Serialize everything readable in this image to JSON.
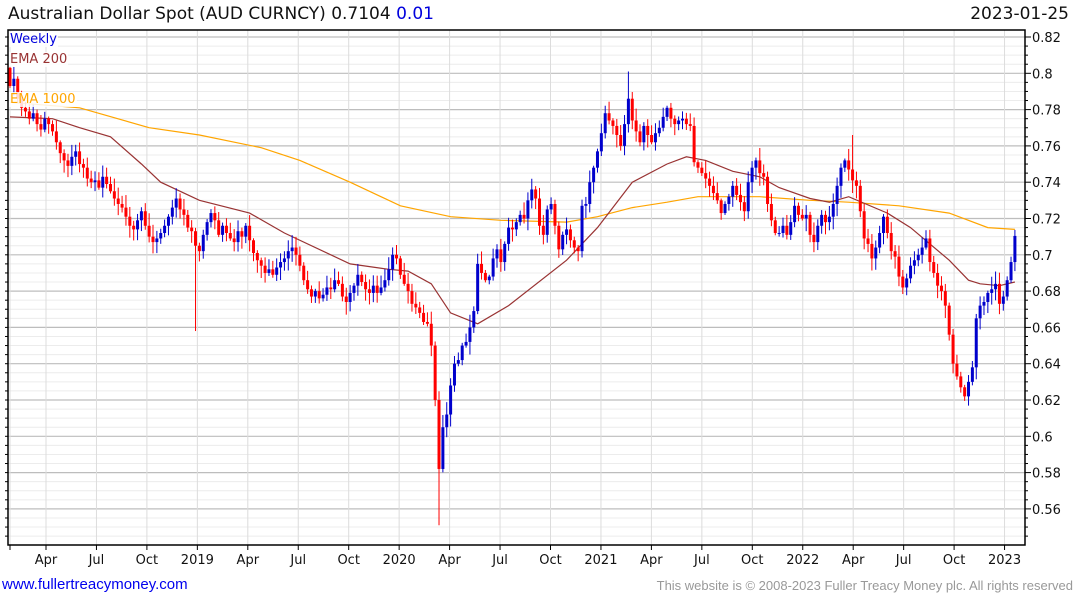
{
  "header": {
    "title": "Australian Dollar Spot (AUD CURNCY) 0.7104",
    "change": "0.01",
    "date": "2023-01-25"
  },
  "legend": {
    "weekly": "Weekly",
    "ema200": "EMA 200",
    "ema1000": "EMA 1000"
  },
  "footer": {
    "site": "www.fullertreacymoney.com",
    "copyright": "This website is © 2008-2023 Fuller Treacy Money plc. All rights reserved"
  },
  "colors": {
    "up": "#0000cc",
    "down": "#ff0000",
    "ema200": "#993333",
    "ema1000": "#ffa500"
  },
  "chart_data": {
    "type": "candlestick",
    "title": "Australian Dollar Spot (AUD CURNCY)",
    "period": "Weekly",
    "ylim": [
      0.545,
      0.825
    ],
    "y_ticks": [
      "0.82",
      "0.8",
      "0.78",
      "0.76",
      "0.74",
      "0.72",
      "0.7",
      "0.68",
      "0.66",
      "0.64",
      "0.62",
      "0.6",
      "0.58",
      "0.56"
    ],
    "x_ticks": [
      "Apr",
      "Jul",
      "Oct",
      "2019",
      "Apr",
      "Jul",
      "Oct",
      "2020",
      "Apr",
      "Jul",
      "Oct",
      "2021",
      "Apr",
      "Jul",
      "Oct",
      "2022",
      "Apr",
      "Jul",
      "Oct",
      "2023"
    ],
    "first_open": 0.803,
    "closes": [
      0.793,
      0.797,
      0.786,
      0.781,
      0.779,
      0.775,
      0.778,
      0.772,
      0.769,
      0.775,
      0.772,
      0.768,
      0.762,
      0.756,
      0.752,
      0.749,
      0.754,
      0.757,
      0.75,
      0.748,
      0.742,
      0.74,
      0.741,
      0.737,
      0.743,
      0.739,
      0.735,
      0.731,
      0.728,
      0.726,
      0.721,
      0.716,
      0.714,
      0.719,
      0.724,
      0.716,
      0.71,
      0.707,
      0.709,
      0.712,
      0.716,
      0.721,
      0.726,
      0.731,
      0.725,
      0.722,
      0.715,
      0.713,
      0.705,
      0.702,
      0.711,
      0.718,
      0.723,
      0.719,
      0.711,
      0.716,
      0.712,
      0.709,
      0.707,
      0.713,
      0.71,
      0.716,
      0.708,
      0.701,
      0.697,
      0.694,
      0.69,
      0.692,
      0.689,
      0.693,
      0.696,
      0.698,
      0.702,
      0.704,
      0.7,
      0.694,
      0.686,
      0.681,
      0.677,
      0.68,
      0.676,
      0.678,
      0.682,
      0.681,
      0.686,
      0.684,
      0.677,
      0.674,
      0.679,
      0.683,
      0.689,
      0.685,
      0.681,
      0.679,
      0.683,
      0.679,
      0.682,
      0.686,
      0.692,
      0.7,
      0.698,
      0.689,
      0.684,
      0.68,
      0.673,
      0.671,
      0.668,
      0.663,
      0.662,
      0.65,
      0.62,
      0.582,
      0.605,
      0.612,
      0.628,
      0.64,
      0.642,
      0.65,
      0.652,
      0.66,
      0.669,
      0.695,
      0.69,
      0.686,
      0.688,
      0.698,
      0.703,
      0.696,
      0.706,
      0.715,
      0.714,
      0.718,
      0.722,
      0.72,
      0.73,
      0.736,
      0.731,
      0.716,
      0.711,
      0.725,
      0.728,
      0.716,
      0.703,
      0.711,
      0.714,
      0.708,
      0.704,
      0.702,
      0.727,
      0.728,
      0.74,
      0.748,
      0.757,
      0.767,
      0.778,
      0.774,
      0.771,
      0.766,
      0.76,
      0.772,
      0.786,
      0.774,
      0.768,
      0.762,
      0.771,
      0.766,
      0.762,
      0.767,
      0.77,
      0.776,
      0.781,
      0.775,
      0.772,
      0.774,
      0.775,
      0.772,
      0.771,
      0.751,
      0.748,
      0.745,
      0.742,
      0.738,
      0.734,
      0.73,
      0.723,
      0.728,
      0.732,
      0.738,
      0.733,
      0.729,
      0.724,
      0.74,
      0.748,
      0.752,
      0.745,
      0.743,
      0.728,
      0.719,
      0.712,
      0.712,
      0.716,
      0.711,
      0.718,
      0.727,
      0.722,
      0.72,
      0.722,
      0.711,
      0.707,
      0.716,
      0.722,
      0.718,
      0.721,
      0.728,
      0.738,
      0.748,
      0.752,
      0.747,
      0.741,
      0.738,
      0.724,
      0.709,
      0.706,
      0.698,
      0.704,
      0.712,
      0.721,
      0.712,
      0.702,
      0.699,
      0.688,
      0.682,
      0.687,
      0.694,
      0.697,
      0.7,
      0.704,
      0.709,
      0.696,
      0.69,
      0.683,
      0.68,
      0.672,
      0.656,
      0.64,
      0.633,
      0.627,
      0.622,
      0.63,
      0.638,
      0.665,
      0.672,
      0.674,
      0.679,
      0.681,
      0.684,
      0.673,
      0.677,
      0.686,
      0.696,
      0.7104
    ],
    "wick_extremes": [
      {
        "week": 48,
        "low": 0.658
      },
      {
        "week": 111,
        "low": 0.551
      },
      {
        "week": 160,
        "high": 0.801
      },
      {
        "week": 218,
        "high": 0.766
      }
    ],
    "ema200": [
      [
        0,
        0.776
      ],
      [
        11,
        0.775
      ],
      [
        18,
        0.77
      ],
      [
        26,
        0.765
      ],
      [
        34,
        0.75
      ],
      [
        39,
        0.74
      ],
      [
        49,
        0.73
      ],
      [
        62,
        0.723
      ],
      [
        71,
        0.712
      ],
      [
        88,
        0.695
      ],
      [
        98,
        0.692
      ],
      [
        103,
        0.691
      ],
      [
        109,
        0.684
      ],
      [
        114,
        0.668
      ],
      [
        121,
        0.662
      ],
      [
        129,
        0.672
      ],
      [
        144,
        0.697
      ],
      [
        152,
        0.715
      ],
      [
        161,
        0.74
      ],
      [
        170,
        0.75
      ],
      [
        175,
        0.754
      ],
      [
        180,
        0.752
      ],
      [
        187,
        0.746
      ],
      [
        194,
        0.743
      ],
      [
        199,
        0.737
      ],
      [
        207,
        0.731
      ],
      [
        212,
        0.729
      ],
      [
        217,
        0.732
      ],
      [
        227,
        0.723
      ],
      [
        233,
        0.715
      ],
      [
        243,
        0.697
      ],
      [
        248,
        0.686
      ],
      [
        251,
        0.684
      ],
      [
        256,
        0.683
      ],
      [
        260,
        0.685
      ]
    ],
    "ema1000": [
      [
        0,
        0.784
      ],
      [
        18,
        0.781
      ],
      [
        36,
        0.77
      ],
      [
        49,
        0.766
      ],
      [
        65,
        0.759
      ],
      [
        75,
        0.752
      ],
      [
        88,
        0.74
      ],
      [
        101,
        0.727
      ],
      [
        114,
        0.721
      ],
      [
        127,
        0.719
      ],
      [
        144,
        0.718
      ],
      [
        152,
        0.721
      ],
      [
        161,
        0.726
      ],
      [
        170,
        0.729
      ],
      [
        178,
        0.732
      ],
      [
        194,
        0.732
      ],
      [
        207,
        0.73
      ],
      [
        217,
        0.729
      ],
      [
        230,
        0.727
      ],
      [
        243,
        0.723
      ],
      [
        253,
        0.715
      ],
      [
        260,
        0.714
      ]
    ]
  }
}
